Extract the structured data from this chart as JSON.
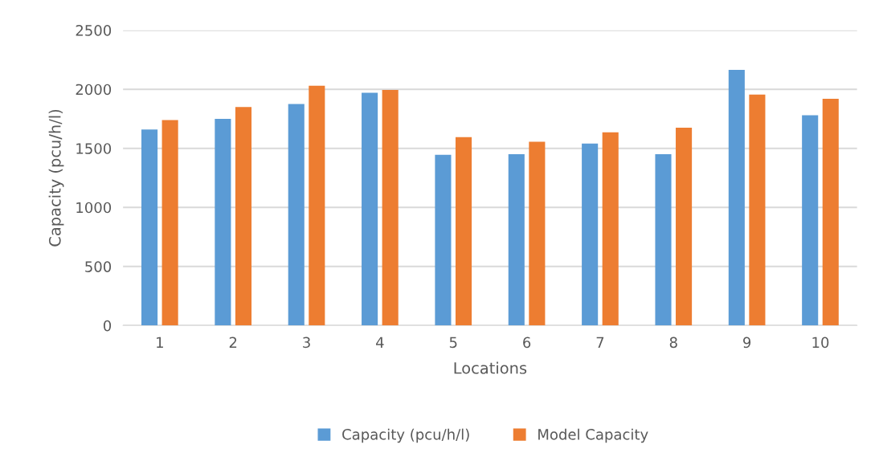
{
  "chart_data": {
    "type": "bar",
    "xlabel": "Locations",
    "ylabel": "Capacity (pcu/h/l)",
    "categories": [
      "1",
      "2",
      "3",
      "4",
      "5",
      "6",
      "7",
      "8",
      "9",
      "10"
    ],
    "series": [
      {
        "name": "Capacity (pcu/h/l)",
        "color": "#5b9bd5",
        "values": [
          1660,
          1750,
          1875,
          1970,
          1445,
          1450,
          1540,
          1450,
          2165,
          1780
        ]
      },
      {
        "name": "Model Capacity",
        "color": "#ed7d31",
        "values": [
          1740,
          1850,
          2030,
          1995,
          1595,
          1555,
          1635,
          1675,
          1955,
          1920
        ]
      }
    ],
    "ylim": [
      0,
      2500
    ],
    "yticks": [
      0,
      500,
      1000,
      1500,
      2000,
      2500
    ],
    "grid": "y",
    "legend": "bottom"
  }
}
